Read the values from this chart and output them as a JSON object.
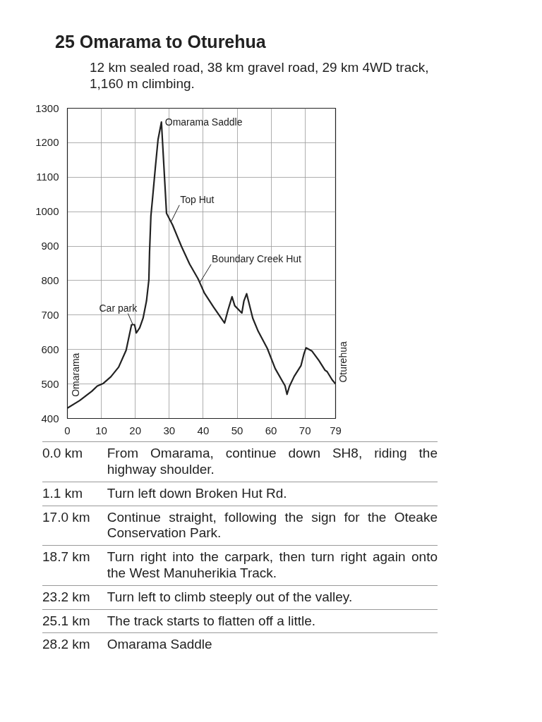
{
  "chart_data": {
    "type": "line",
    "title": "25 Omarama to Oturehua",
    "subtitle": "12 km sealed road, 38 km gravel road, 29 km 4WD track, 1,160 m climbing.",
    "x": [
      0,
      3.6,
      7.2,
      8.8,
      10.6,
      12.8,
      15.1,
      17.3,
      18.9,
      19.8,
      20.3,
      21.3,
      22.3,
      23.3,
      24,
      24.2,
      24.6,
      25.1,
      25.9,
      26.7,
      27.7,
      29.2,
      31,
      33.6,
      36,
      38.5,
      39,
      40.3,
      43,
      46.3,
      47.3,
      48.5,
      49.3,
      51.4,
      52,
      52.8,
      54.6,
      56.2,
      58.9,
      61.2,
      63.4,
      64.1,
      64.7,
      65.4,
      66.8,
      68.8,
      69.7,
      70.3,
      72,
      74.1,
      75.9,
      76.5,
      78,
      79
    ],
    "values": [
      430,
      452,
      479,
      494,
      502,
      521,
      549,
      598,
      672,
      672,
      648,
      663,
      691,
      741,
      802,
      883,
      988,
      1040,
      1127,
      1209,
      1260,
      995,
      961,
      899,
      848,
      805,
      794,
      765,
      724,
      677,
      714,
      753,
      727,
      706,
      741,
      762,
      691,
      653,
      603,
      545,
      507,
      495,
      470,
      493,
      522,
      553,
      588,
      605,
      596,
      568,
      540,
      536,
      512,
      500
    ],
    "color": "#222222",
    "xlim": [
      0,
      79
    ],
    "ylim": [
      400,
      1300
    ],
    "xticks": [
      0,
      10,
      20,
      30,
      40,
      50,
      60,
      70,
      79
    ],
    "yticks": [
      400,
      500,
      600,
      700,
      800,
      900,
      1000,
      1100,
      1200,
      1300
    ],
    "grid": true,
    "annotations": [
      {
        "text": "Omarama Saddle",
        "x": 27.7,
        "y": 1260
      },
      {
        "text": "Top Hut",
        "x": 30.5,
        "y": 970
      },
      {
        "text": "Boundary Creek Hut",
        "x": 39,
        "y": 794
      },
      {
        "text": "Car park",
        "x": 19.3,
        "y": 672
      },
      {
        "text": "Omarama",
        "x": 0,
        "y": 430
      },
      {
        "text": "Oturehua",
        "x": 79,
        "y": 500
      },
      "0.0 km",
      "From Omarama, continue down SH8, riding the highway shoulder.",
      "1.1 km",
      "Turn left down Broken Hut Rd.",
      "17.0 km",
      "Continue straight, following the sign for the Oteake Conservation Park.",
      "18.7 km",
      "Turn right into the carpark, then turn right again onto the West Manuherikia Track.",
      "23.2 km",
      "Turn left to climb steeply out of the valley.",
      "25.1 km",
      "The track starts to flatten off a little.",
      "28.2 km",
      "Omarama Saddle"
    ]
  }
}
